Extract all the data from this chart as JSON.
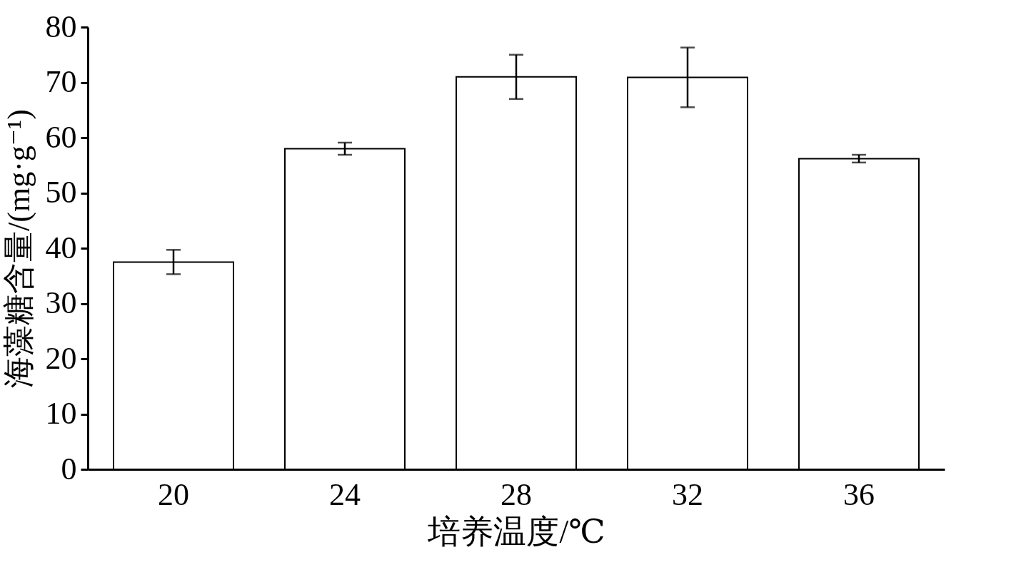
{
  "chart_data": {
    "type": "bar",
    "xlabel": "培养温度/℃",
    "ylabel": "海藻糖含量/(mg·g⁻¹)",
    "categories": [
      "20",
      "24",
      "28",
      "32",
      "36"
    ],
    "values": [
      37.5,
      58.0,
      71.0,
      70.9,
      56.2
    ],
    "errors": [
      2.2,
      1.1,
      4.0,
      5.4,
      0.7
    ],
    "color": "#ffffff",
    "ylim": [
      0,
      80
    ],
    "yticks": [
      0,
      10,
      20,
      30,
      40,
      50,
      60,
      70,
      80
    ],
    "grid": false
  }
}
